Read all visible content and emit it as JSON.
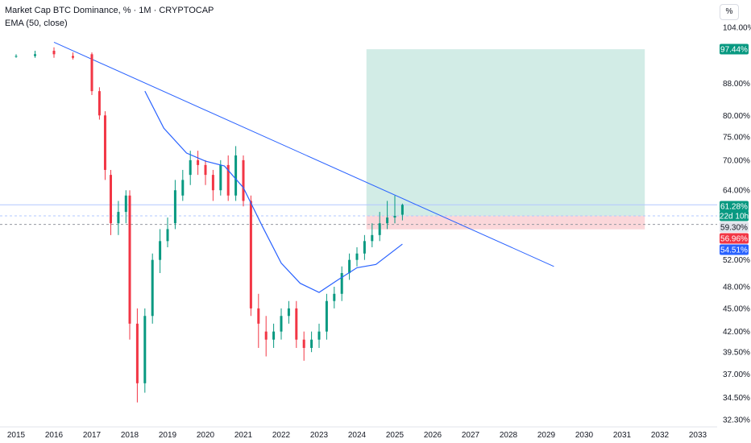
{
  "legend": {
    "title": "Market Cap BTC Dominance, % · 1M · CRYPTOCAP",
    "indicator": "EMA (50, close)",
    "unit": "%"
  },
  "colors": {
    "up": "#089981",
    "down": "#f23645",
    "ema": "#2962ff",
    "trendline": "#2962ff",
    "target_zone": "#cdeae3",
    "stop_zone": "#fbd3d6",
    "badge_price": "#089981",
    "badge_neutral": "#e0e3eb",
    "badge_red": "#f23645",
    "badge_blue": "#2962ff"
  },
  "price_badges": [
    {
      "label": "97.44%",
      "style": "outline_green",
      "value": 97.44
    },
    {
      "label": "61.28%",
      "style": "green",
      "value": 61.28
    },
    {
      "label": "22d 10h",
      "style": "green_sub",
      "value": 61.28
    },
    {
      "label": "59.30%",
      "style": "neutral",
      "value": 59.3
    },
    {
      "label": "56.96%",
      "style": "red",
      "value": 56.96
    },
    {
      "label": "54.51%",
      "style": "blue",
      "value": 54.51
    }
  ],
  "chart_data": {
    "type": "candlestick",
    "x_ticks": [
      "2015",
      "2016",
      "2017",
      "2018",
      "2019",
      "2020",
      "2021",
      "2022",
      "2023",
      "2024",
      "2025",
      "2026",
      "2027",
      "2028",
      "2029",
      "2030",
      "2031",
      "2032",
      "2033"
    ],
    "y_ticks": [
      "104.00%",
      "97.44%",
      "88.00%",
      "80.00%",
      "75.00%",
      "70.00%",
      "64.00%",
      "61.28%",
      "59.30%",
      "56.96%",
      "54.51%",
      "52.00%",
      "48.00%",
      "45.00%",
      "42.00%",
      "39.50%",
      "37.00%",
      "34.50%",
      "32.30%"
    ],
    "y_scale": "log",
    "grid": false,
    "series": [
      {
        "name": "EMA (50, close)",
        "type": "line",
        "x": [
          2018.4,
          2018.9,
          2019.5,
          2020.0,
          2020.5,
          2021.0,
          2021.5,
          2022.0,
          2022.5,
          2023.0,
          2023.5,
          2024.0,
          2024.5,
          2025.2
        ],
        "y": [
          86,
          77,
          71.5,
          69.8,
          68.8,
          64.5,
          57.5,
          51.5,
          48.5,
          47.2,
          49.0,
          50.8,
          51.3,
          54.51
        ]
      },
      {
        "name": "Trendline",
        "type": "line",
        "x": [
          2016.0,
          2029.2
        ],
        "y": [
          99.5,
          51.0
        ]
      },
      {
        "name": "Candles",
        "type": "candlestick",
        "x": [
          2015.0,
          2015.5,
          2016.0,
          2016.5,
          2017.0,
          2017.2,
          2017.35,
          2017.5,
          2017.7,
          2017.9,
          2018.0,
          2018.2,
          2018.4,
          2018.6,
          2018.8,
          2019.0,
          2019.2,
          2019.4,
          2019.6,
          2019.8,
          2020.0,
          2020.2,
          2020.4,
          2020.6,
          2020.8,
          2021.0,
          2021.2,
          2021.4,
          2021.6,
          2021.8,
          2022.0,
          2022.2,
          2022.4,
          2022.6,
          2022.8,
          2023.0,
          2023.2,
          2023.4,
          2023.6,
          2023.8,
          2024.0,
          2024.2,
          2024.4,
          2024.6,
          2024.8,
          2025.0,
          2025.2
        ],
        "open": [
          95.5,
          95.5,
          97,
          95.5,
          96,
          86,
          80,
          67,
          58,
          60,
          63,
          43,
          36,
          44,
          52,
          55,
          58,
          63,
          67,
          70,
          69,
          67,
          64,
          69,
          63,
          70,
          62,
          45,
          42,
          41,
          42,
          44,
          45,
          41,
          40,
          41,
          42,
          46,
          47,
          50,
          52,
          53,
          55,
          56,
          58,
          59,
          59.5
        ],
        "close": [
          95.5,
          96,
          96,
          95,
          86,
          80,
          68,
          58,
          60,
          63,
          43,
          36,
          44,
          52,
          55,
          57,
          64,
          66,
          70,
          69,
          67,
          64,
          69,
          63,
          71,
          62,
          45,
          43,
          41,
          42,
          44,
          45,
          41,
          40,
          41,
          42,
          46,
          47,
          50,
          52,
          53,
          55,
          56,
          58,
          59,
          59.3,
          61.28
        ],
        "high": [
          96,
          97,
          98,
          96.5,
          96.5,
          87,
          81,
          68,
          62,
          64,
          64,
          45,
          45,
          53,
          57,
          59,
          66,
          68,
          72,
          72,
          70,
          68,
          70,
          71,
          73,
          71,
          63,
          47,
          44,
          43,
          45,
          46,
          46,
          42,
          42,
          43,
          47,
          48,
          51,
          53,
          54,
          56,
          58,
          60,
          62,
          63,
          61.5
        ],
        "low": [
          95,
          95,
          95,
          94.5,
          85,
          79,
          66,
          56,
          56,
          58,
          41,
          34,
          35,
          43,
          50,
          54,
          57,
          62,
          65,
          67,
          65,
          62,
          63,
          62,
          62,
          61,
          44,
          40,
          39,
          40,
          41,
          43,
          40,
          38.5,
          39.5,
          40,
          41,
          45,
          46,
          49,
          51,
          52,
          54,
          55,
          57,
          58,
          58.5
        ]
      }
    ],
    "zones": [
      {
        "name": "target",
        "x_start": 2024.25,
        "x_end": 2031.6,
        "y_from": 59.3,
        "y_to": 97.44
      },
      {
        "name": "stop",
        "x_start": 2024.25,
        "x_end": 2031.6,
        "y_from": 56.96,
        "y_to": 59.3
      }
    ]
  }
}
